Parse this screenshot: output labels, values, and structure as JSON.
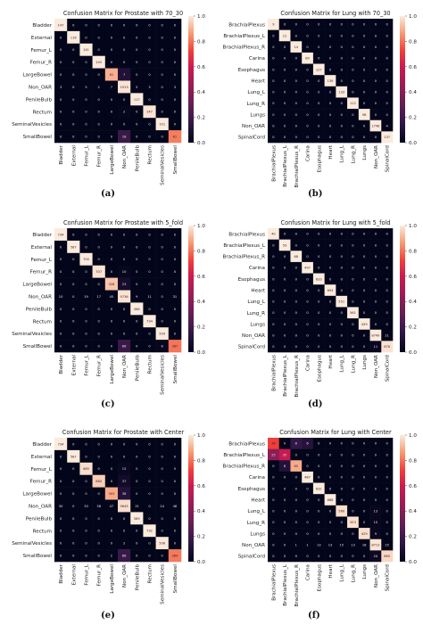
{
  "chart_data": [
    {
      "type": "heatmap",
      "title": "Confusion Matrix for Prostate with 70_30",
      "panel_label": "(a)",
      "labels": [
        "Bladder",
        "External",
        "Femur_L",
        "Femur_R",
        "LargeBowel",
        "Non_OAR",
        "PenileBulb",
        "Rectum",
        "SeminalVesicles",
        "SmallBowel"
      ],
      "matrix": [
        [
          147,
          0,
          0,
          0,
          0,
          0,
          0,
          0,
          0,
          0
        ],
        [
          0,
          116,
          0,
          0,
          0,
          0,
          0,
          0,
          0,
          0
        ],
        [
          0,
          0,
          141,
          0,
          0,
          0,
          0,
          0,
          0,
          0
        ],
        [
          0,
          0,
          0,
          145,
          0,
          0,
          0,
          0,
          0,
          0
        ],
        [
          0,
          0,
          0,
          0,
          61,
          7,
          0,
          0,
          0,
          0
        ],
        [
          3,
          0,
          5,
          2,
          7,
          1913,
          5,
          3,
          0,
          3
        ],
        [
          0,
          0,
          0,
          0,
          0,
          0,
          117,
          0,
          0,
          0
        ],
        [
          0,
          0,
          0,
          0,
          0,
          2,
          0,
          147,
          0,
          0
        ],
        [
          0,
          0,
          0,
          0,
          0,
          0,
          0,
          0,
          101,
          0
        ],
        [
          0,
          0,
          0,
          0,
          0,
          18,
          0,
          0,
          0,
          81
        ]
      ],
      "colorbar": {
        "min": 0.0,
        "max": 1.0,
        "ticks": [
          "0.0",
          "0.2",
          "0.4",
          "0.6",
          "0.8",
          "1.0"
        ]
      }
    },
    {
      "type": "heatmap",
      "title": "Confusion Matrix for Lung with 70_30",
      "panel_label": "(b)",
      "labels": [
        "BrachialPlexus",
        "BrachialPlexus_L",
        "BrachialPlexus_R",
        "Carina",
        "Esophagus",
        "Heart",
        "Lung_L",
        "Lung_R",
        "Lungs",
        "Non_OAR",
        "SpinalCord"
      ],
      "matrix": [
        [
          9,
          0,
          0,
          0,
          0,
          0,
          0,
          0,
          0,
          0,
          0
        ],
        [
          0,
          12,
          0,
          0,
          0,
          0,
          0,
          0,
          0,
          0,
          0
        ],
        [
          0,
          0,
          14,
          0,
          0,
          0,
          0,
          0,
          0,
          0,
          0
        ],
        [
          0,
          0,
          0,
          89,
          0,
          0,
          0,
          0,
          0,
          0,
          0
        ],
        [
          0,
          0,
          0,
          0,
          127,
          0,
          0,
          0,
          0,
          0,
          0
        ],
        [
          0,
          0,
          0,
          0,
          0,
          139,
          0,
          0,
          0,
          0,
          0
        ],
        [
          0,
          0,
          0,
          0,
          0,
          0,
          133,
          0,
          0,
          0,
          0
        ],
        [
          0,
          0,
          0,
          0,
          0,
          0,
          0,
          112,
          0,
          0,
          0
        ],
        [
          0,
          0,
          0,
          0,
          0,
          0,
          0,
          0,
          98,
          0,
          0
        ],
        [
          0,
          0,
          0,
          0,
          0,
          0,
          0,
          0,
          0,
          1748,
          4
        ],
        [
          0,
          0,
          0,
          0,
          0,
          0,
          0,
          0,
          0,
          0,
          137
        ]
      ],
      "colorbar": {
        "min": 0.0,
        "max": 1.0,
        "ticks": [
          "0.0",
          "0.2",
          "0.4",
          "0.6",
          "0.8",
          "1.0"
        ]
      }
    },
    {
      "type": "heatmap",
      "title": "Confusion Matrix for Prostate with 5_fold",
      "panel_label": "(c)",
      "labels": [
        "Bladder",
        "External",
        "Femur_L",
        "Femur_R",
        "LargeBowel",
        "Non_OAR",
        "PenileBulb",
        "Rectum",
        "SeminalVesicles",
        "SmallBowel"
      ],
      "matrix": [
        [
          734,
          0,
          0,
          0,
          0,
          0,
          0,
          0,
          0,
          0
        ],
        [
          0,
          587,
          0,
          0,
          0,
          0,
          0,
          0,
          0,
          0
        ],
        [
          0,
          0,
          700,
          0,
          0,
          0,
          0,
          0,
          0,
          0
        ],
        [
          0,
          0,
          0,
          707,
          0,
          10,
          0,
          0,
          0,
          0
        ],
        [
          0,
          0,
          0,
          0,
          328,
          23,
          0,
          0,
          0,
          0
        ],
        [
          10,
          0,
          19,
          17,
          45,
          9736,
          9,
          11,
          0,
          31
        ],
        [
          0,
          0,
          0,
          0,
          0,
          0,
          586,
          0,
          0,
          0
        ],
        [
          0,
          0,
          0,
          0,
          0,
          0,
          0,
          734,
          0,
          0
        ],
        [
          0,
          0,
          0,
          0,
          0,
          0,
          0,
          0,
          509,
          0
        ],
        [
          0,
          0,
          0,
          0,
          0,
          86,
          0,
          0,
          8,
          387
        ]
      ],
      "colorbar": {
        "min": 0.0,
        "max": 1.0,
        "ticks": [
          "0.0",
          "0.2",
          "0.4",
          "0.6",
          "0.8",
          "1.0"
        ]
      }
    },
    {
      "type": "heatmap",
      "title": "Confusion Matrix for Lung with 5_fold",
      "panel_label": "(d)",
      "labels": [
        "BrachialPlexus",
        "BrachialPlexus_L",
        "BrachialPlexus_R",
        "Carina",
        "Esophagus",
        "Heart",
        "Lung_L",
        "Lung_R",
        "Lungs",
        "Non_OAR",
        "SpinalCord"
      ],
      "matrix": [
        [
          40,
          0,
          0,
          0,
          0,
          0,
          0,
          0,
          0,
          0,
          0
        ],
        [
          0,
          59,
          0,
          0,
          0,
          0,
          0,
          0,
          0,
          0,
          0
        ],
        [
          0,
          0,
          68,
          0,
          0,
          0,
          0,
          0,
          0,
          0,
          0
        ],
        [
          0,
          0,
          0,
          497,
          0,
          0,
          0,
          0,
          0,
          0,
          0
        ],
        [
          0,
          0,
          0,
          0,
          633,
          0,
          0,
          0,
          0,
          0,
          0
        ],
        [
          0,
          0,
          0,
          0,
          0,
          693,
          0,
          0,
          0,
          0,
          0
        ],
        [
          0,
          0,
          0,
          0,
          0,
          0,
          551,
          0,
          0,
          0,
          0
        ],
        [
          0,
          0,
          0,
          0,
          0,
          0,
          0,
          561,
          0,
          0,
          0
        ],
        [
          0,
          0,
          0,
          0,
          0,
          0,
          0,
          0,
          439,
          0,
          0
        ],
        [
          0,
          0,
          0,
          0,
          0,
          0,
          0,
          0,
          0,
          8749,
          21
        ],
        [
          0,
          0,
          0,
          0,
          0,
          0,
          0,
          0,
          0,
          11,
          678
        ]
      ],
      "colorbar": {
        "min": 0.0,
        "max": 1.0,
        "ticks": [
          "0.0",
          "0.2",
          "0.4",
          "0.6",
          "0.8",
          "1.0"
        ]
      }
    },
    {
      "type": "heatmap",
      "title": "Confusion Matrix for Prostate with Center",
      "panel_label": "(e)",
      "labels": [
        "Bladder",
        "External",
        "Femur_L",
        "Femur_R",
        "LargeBowel",
        "Non_OAR",
        "PenileBulb",
        "Rectum",
        "SeminalVesicles",
        "SmallBowel"
      ],
      "matrix": [
        [
          734,
          0,
          0,
          0,
          0,
          0,
          0,
          0,
          0,
          0
        ],
        [
          0,
          587,
          0,
          0,
          0,
          0,
          0,
          0,
          0,
          0
        ],
        [
          0,
          0,
          685,
          0,
          0,
          15,
          0,
          0,
          0,
          0
        ],
        [
          0,
          0,
          0,
          680,
          0,
          37,
          0,
          0,
          0,
          0
        ],
        [
          0,
          0,
          0,
          0,
          303,
          38,
          0,
          0,
          0,
          0
        ],
        [
          30,
          0,
          33,
          38,
          47,
          9645,
          15,
          0,
          24,
          48
        ],
        [
          0,
          0,
          0,
          0,
          0,
          0,
          589,
          0,
          0,
          0
        ],
        [
          0,
          0,
          0,
          0,
          0,
          0,
          0,
          732,
          0,
          0
        ],
        [
          0,
          0,
          0,
          0,
          0,
          2,
          0,
          0,
          506,
          0
        ],
        [
          0,
          0,
          0,
          0,
          2,
          88,
          0,
          0,
          0,
          389
        ]
      ],
      "colorbar": {
        "min": 0.0,
        "max": 1.0,
        "ticks": [
          "0.0",
          "0.2",
          "0.4",
          "0.6",
          "0.8",
          "1.0"
        ]
      }
    },
    {
      "type": "heatmap",
      "title": "Confusion Matrix for Lung with Center",
      "panel_label": "(f)",
      "labels": [
        "BrachialPlexus",
        "BrachialPlexus_L",
        "BrachialPlexus_R",
        "Carina",
        "Esophagus",
        "Heart",
        "Lung_L",
        "Lung_R",
        "Lungs",
        "Non_OAR",
        "SpinalCord"
      ],
      "matrix": [
        [
          36,
          0,
          8,
          6,
          0,
          0,
          0,
          0,
          0,
          0,
          0
        ],
        [
          25,
          35,
          0,
          0,
          0,
          0,
          0,
          0,
          0,
          0,
          0
        ],
        [
          0,
          8,
          65,
          0,
          0,
          0,
          0,
          0,
          0,
          0,
          0
        ],
        [
          0,
          0,
          0,
          487,
          0,
          0,
          0,
          0,
          0,
          0,
          0
        ],
        [
          0,
          0,
          0,
          0,
          632,
          0,
          0,
          0,
          0,
          0,
          0
        ],
        [
          0,
          0,
          0,
          0,
          0,
          688,
          0,
          0,
          0,
          0,
          0
        ],
        [
          0,
          0,
          0,
          0,
          0,
          0,
          560,
          0,
          0,
          13,
          0
        ],
        [
          0,
          0,
          0,
          0,
          0,
          0,
          0,
          553,
          0,
          10,
          0
        ],
        [
          0,
          0,
          0,
          0,
          0,
          0,
          0,
          0,
          429,
          9,
          0
        ],
        [
          0,
          0,
          1,
          1,
          13,
          13,
          15,
          13,
          18,
          8713,
          25
        ],
        [
          0,
          0,
          0,
          0,
          0,
          0,
          0,
          0,
          0,
          24,
          665
        ]
      ],
      "colorbar": {
        "min": 0.0,
        "max": 1.0,
        "ticks": [
          "0.0",
          "0.2",
          "0.4",
          "0.6",
          "0.8",
          "1.0"
        ]
      }
    }
  ]
}
